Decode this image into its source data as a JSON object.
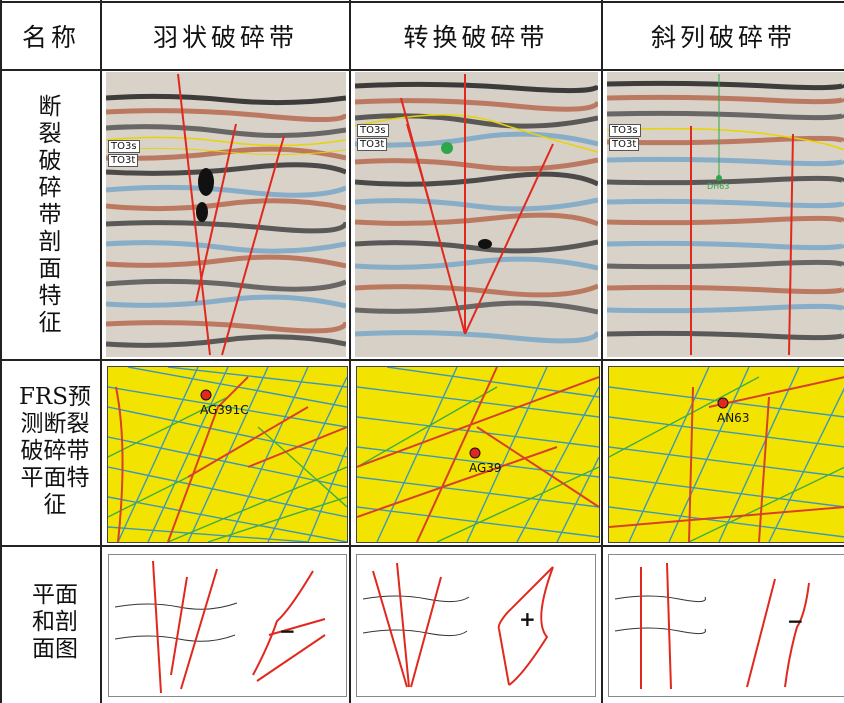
{
  "header": {
    "name": "名称",
    "col1": "羽状破碎带",
    "col2": "转换破碎带",
    "col3": "斜列破碎带"
  },
  "rows": {
    "section_label": "断裂破碎带剖面特征",
    "frs_label": "FRS预测断裂破碎带平面特征",
    "plan_label": "平面和剖面图"
  },
  "seismic": {
    "horizon_top": "TO3s",
    "horizon_bottom": "TO3t",
    "well3": "DH63"
  },
  "wells": {
    "col1": "AG391C",
    "col2": "AG39",
    "col3": "AN63"
  },
  "sketch": {
    "col1_sign": "−",
    "col2_sign": "+",
    "col3_sign": "−"
  },
  "colors": {
    "fault": "#e0281e",
    "horizon": "#e8d400",
    "frs_yellow": "#f2e400",
    "frs_blue": "#2a8fd0",
    "frs_green": "#2ea64a",
    "frs_red": "#d8402a"
  }
}
